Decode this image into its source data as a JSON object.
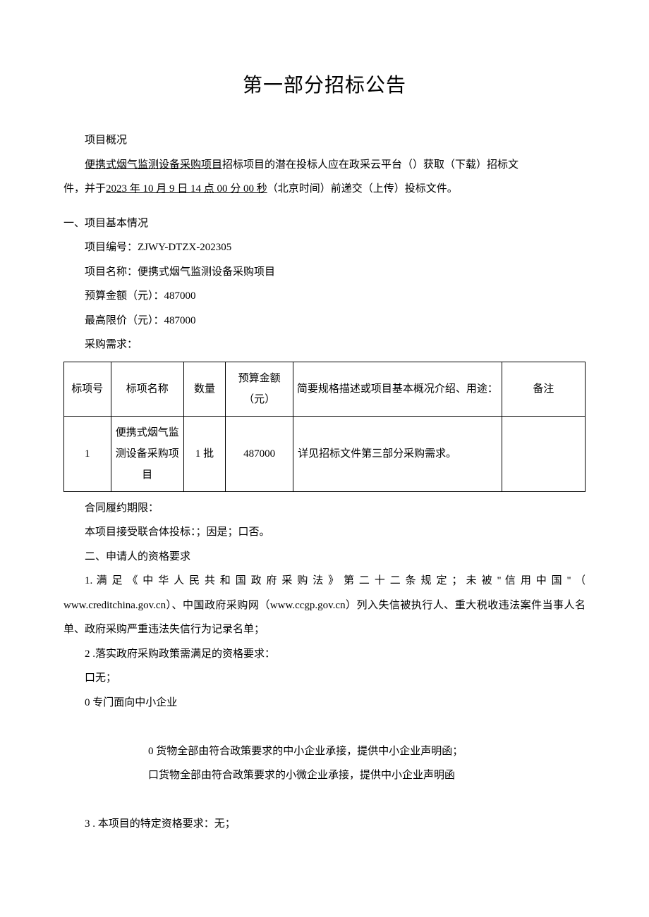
{
  "title": "第一部分招标公告",
  "overview_label": "项目概况",
  "overview_line1_u": "便携式烟气监测设备采购项目",
  "overview_line1_rest": "招标项目的潜在投标人应在政采云平台（）获取（下载）招标文",
  "overview_line2_pre": "件，并于",
  "overview_line2_u": "2023 年 10 月 9 日 14 点 00 分 00 秒",
  "overview_line2_post": "（北京时间）前递交（上传）投标文件。",
  "sec1_head": "一、项目基本情况",
  "proj_code": "项目编号：ZJWY-DTZX-202305",
  "proj_name": "项目名称：便携式烟气监测设备采购项目",
  "budget": "预算金额（元）：487000",
  "max_price": "最高限价（元）：487000",
  "procure_req": "采购需求：",
  "table": {
    "headers": {
      "id": "标项号",
      "name": "标项名称",
      "qty": "数量",
      "amt": "预算金额（元）",
      "desc": "简要规格描述或项目基本概况介绍、用途：",
      "note": "备注"
    },
    "row": {
      "id": "1",
      "name": "便携式烟气监测设备采购项目",
      "qty": "1 批",
      "amt": "487000",
      "desc": "详见招标文件第三部分采购需求。",
      "note": ""
    }
  },
  "contract_term": "合同履约期限：",
  "consortium": "本项目接受联合体投标：；因是；口否。",
  "sec2_head": "二、申请人的资格要求",
  "req1": "1. 满 足 《 中 华 人 民 共 和 国 政 府 采 购 法 》 第 二 十 二 条 规 定 ； 未 被 \" 信 用 中 国 \" （ www.creditchina.gov.cn）、中国政府采购网（www.ccgp.gov.cn）列入失信被执行人、重大税收违法案件当事人名单、政府采购严重违法失信行为记录名单；",
  "req2": "2 .落实政府采购政策需满足的资格要求：",
  "req2_none": "口无；",
  "req2_sme": "0 专门面向中小企业",
  "req2_sub1": "0 货物全部由符合政策要求的中小企业承接，提供中小企业声明函；",
  "req2_sub2": "口货物全部由符合政策要求的小微企业承接，提供中小企业声明函",
  "req3": "3 . 本项目的特定资格要求：无；"
}
